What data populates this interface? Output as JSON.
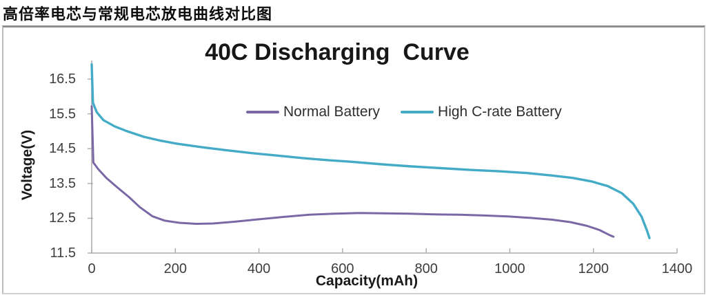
{
  "page": {
    "title": "高倍率电芯与常规电芯放电曲线对比图"
  },
  "chart_data": {
    "type": "line",
    "title": "40C Discharging  Curve",
    "xlabel": "Capacity(mAh)",
    "ylabel": "Voltage(V)",
    "xlim": [
      0,
      1400
    ],
    "ylim": [
      11.5,
      17.0
    ],
    "x_ticks": [
      "0",
      "200",
      "400",
      "600",
      "800",
      "1000",
      "1200",
      "1400"
    ],
    "y_ticks": [
      "16.5",
      "15.5",
      "14.5",
      "13.5",
      "12.5",
      "11.5"
    ],
    "grid": false,
    "legend_position": "top-center",
    "axis_color": "#ababab",
    "series": [
      {
        "name": "Normal Battery",
        "color": "#7a67a5",
        "stroke_width": 3,
        "points": [
          [
            0,
            15.72
          ],
          [
            4,
            14.1
          ],
          [
            15,
            13.92
          ],
          [
            35,
            13.66
          ],
          [
            60,
            13.4
          ],
          [
            90,
            13.1
          ],
          [
            115,
            12.82
          ],
          [
            145,
            12.56
          ],
          [
            175,
            12.43
          ],
          [
            210,
            12.37
          ],
          [
            250,
            12.34
          ],
          [
            290,
            12.35
          ],
          [
            340,
            12.4
          ],
          [
            400,
            12.47
          ],
          [
            460,
            12.54
          ],
          [
            520,
            12.6
          ],
          [
            580,
            12.63
          ],
          [
            640,
            12.65
          ],
          [
            700,
            12.64
          ],
          [
            760,
            12.63
          ],
          [
            820,
            12.61
          ],
          [
            880,
            12.6
          ],
          [
            940,
            12.58
          ],
          [
            1000,
            12.55
          ],
          [
            1050,
            12.51
          ],
          [
            1100,
            12.46
          ],
          [
            1145,
            12.39
          ],
          [
            1185,
            12.28
          ],
          [
            1215,
            12.16
          ],
          [
            1238,
            12.02
          ],
          [
            1248,
            11.97
          ]
        ]
      },
      {
        "name": "High C-rate Battery",
        "color": "#44abc7",
        "stroke_width": 3.4,
        "points": [
          [
            0,
            16.92
          ],
          [
            3,
            15.82
          ],
          [
            12,
            15.55
          ],
          [
            28,
            15.32
          ],
          [
            55,
            15.14
          ],
          [
            85,
            15.0
          ],
          [
            125,
            14.84
          ],
          [
            165,
            14.73
          ],
          [
            205,
            14.64
          ],
          [
            265,
            14.54
          ],
          [
            325,
            14.45
          ],
          [
            385,
            14.37
          ],
          [
            445,
            14.3
          ],
          [
            505,
            14.23
          ],
          [
            565,
            14.17
          ],
          [
            625,
            14.12
          ],
          [
            695,
            14.05
          ],
          [
            765,
            13.99
          ],
          [
            835,
            13.94
          ],
          [
            905,
            13.89
          ],
          [
            975,
            13.85
          ],
          [
            1040,
            13.8
          ],
          [
            1100,
            13.73
          ],
          [
            1150,
            13.66
          ],
          [
            1195,
            13.56
          ],
          [
            1235,
            13.42
          ],
          [
            1268,
            13.22
          ],
          [
            1295,
            12.92
          ],
          [
            1315,
            12.55
          ],
          [
            1328,
            12.15
          ],
          [
            1334,
            11.93
          ]
        ]
      }
    ]
  }
}
